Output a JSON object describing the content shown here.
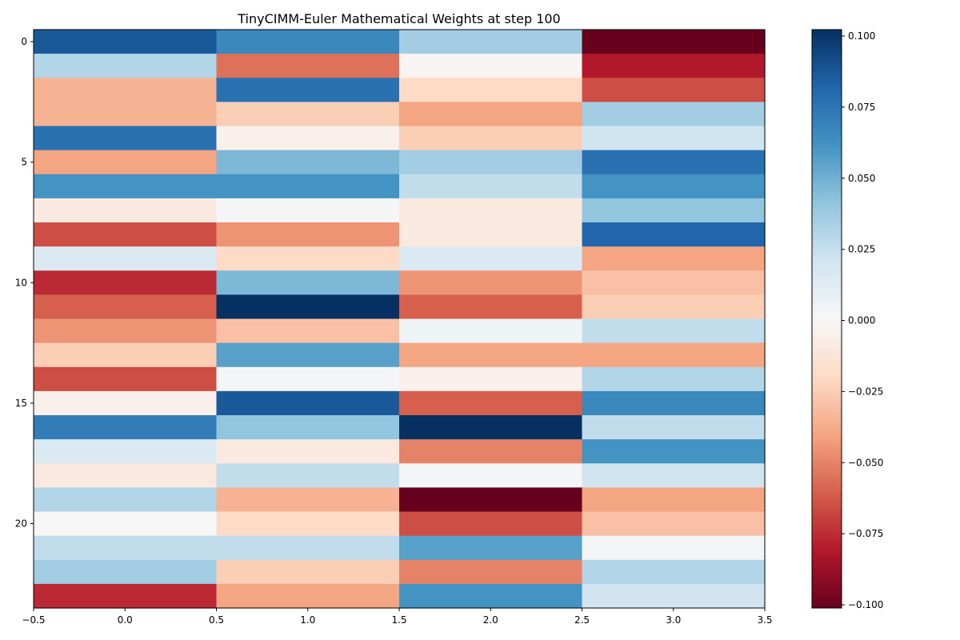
{
  "chart_data": {
    "type": "heatmap",
    "title": "TinyCIMM-Euler Mathematical Weights at step 100",
    "xlabel": "",
    "ylabel": "",
    "colormap": "RdBu",
    "colormap_stops": [
      "#67001f",
      "#b2182b",
      "#d6604d",
      "#f4a582",
      "#fddbc7",
      "#f7f7f7",
      "#d1e5f0",
      "#92c5de",
      "#4393c3",
      "#2166ac",
      "#053061"
    ],
    "vmin": -0.1,
    "vmax": 0.1,
    "xlim": [
      -0.5,
      3.5
    ],
    "ylim": [
      23.5,
      -0.5
    ],
    "x_ticks": [
      -0.5,
      0.0,
      0.5,
      1.0,
      1.5,
      2.0,
      2.5,
      3.0,
      3.5
    ],
    "x_tick_labels": [
      "−0.5",
      "0.0",
      "0.5",
      "1.0",
      "1.5",
      "2.0",
      "2.5",
      "3.0",
      "3.5"
    ],
    "y_ticks": [
      0,
      5,
      10,
      15,
      20
    ],
    "y_tick_labels": [
      "0",
      "5",
      "10",
      "15",
      "20"
    ],
    "colorbar_ticks": [
      0.1,
      0.075,
      0.05,
      0.025,
      0.0,
      -0.025,
      -0.05,
      -0.075,
      -0.1
    ],
    "colorbar_tick_labels": [
      "0.100",
      "0.075",
      "0.050",
      "0.025",
      "0.000",
      "−0.025",
      "−0.050",
      "−0.075",
      "−0.100"
    ],
    "values": [
      [
        0.085,
        0.065,
        0.035,
        -0.1
      ],
      [
        0.03,
        -0.055,
        -0.002,
        -0.08
      ],
      [
        -0.035,
        0.075,
        -0.02,
        -0.065
      ],
      [
        -0.035,
        -0.025,
        -0.04,
        0.035
      ],
      [
        0.075,
        -0.005,
        -0.025,
        0.02
      ],
      [
        -0.04,
        0.045,
        0.035,
        0.075
      ],
      [
        0.06,
        0.06,
        0.025,
        0.06
      ],
      [
        -0.01,
        0.002,
        -0.01,
        0.04
      ],
      [
        -0.065,
        -0.045,
        -0.01,
        0.08
      ],
      [
        0.015,
        -0.02,
        0.015,
        -0.04
      ],
      [
        -0.075,
        0.045,
        -0.045,
        -0.03
      ],
      [
        -0.06,
        0.1,
        -0.06,
        -0.025
      ],
      [
        -0.045,
        -0.03,
        0.005,
        0.025
      ],
      [
        -0.025,
        0.055,
        -0.04,
        -0.04
      ],
      [
        -0.065,
        0.002,
        -0.005,
        0.03
      ],
      [
        -0.005,
        0.085,
        -0.06,
        0.065
      ],
      [
        0.07,
        0.04,
        0.1,
        0.025
      ],
      [
        0.015,
        -0.01,
        -0.05,
        0.06
      ],
      [
        -0.01,
        0.025,
        0.002,
        0.02
      ],
      [
        0.03,
        -0.035,
        -0.1,
        -0.04
      ],
      [
        0.0,
        -0.02,
        -0.065,
        -0.03
      ],
      [
        0.025,
        0.025,
        0.055,
        0.002
      ],
      [
        0.035,
        -0.025,
        -0.05,
        0.03
      ],
      [
        -0.075,
        -0.04,
        0.06,
        0.02
      ]
    ]
  }
}
